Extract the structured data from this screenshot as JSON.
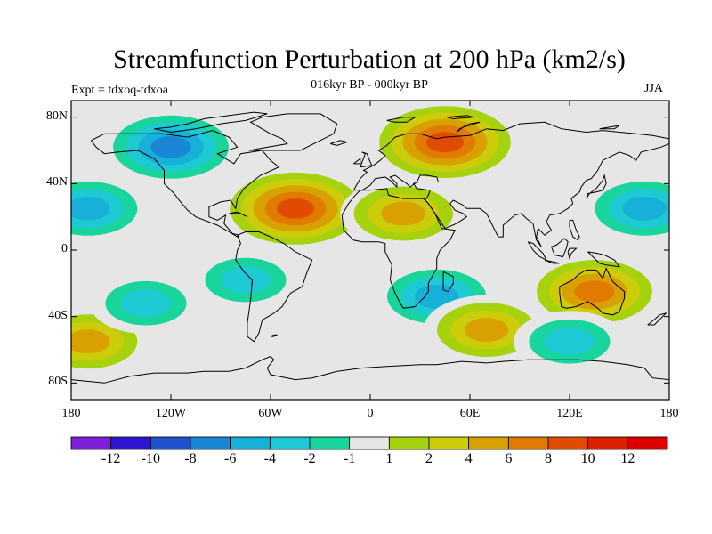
{
  "chart_data": {
    "type": "heatmap",
    "title": "Streamfunction Perturbation at 200 hPa (km2/s)",
    "subtitle": "016kyr BP - 000kyr BP",
    "left_string": "Expt = tdxoq-tdxoa",
    "right_string": "JJA",
    "xlim": [
      -180,
      180
    ],
    "ylim": [
      -90,
      90
    ],
    "x_ticks": [
      {
        "value": -180,
        "label": "180"
      },
      {
        "value": -120,
        "label": "120W"
      },
      {
        "value": -60,
        "label": "60W"
      },
      {
        "value": 0,
        "label": "0"
      },
      {
        "value": 60,
        "label": "60E"
      },
      {
        "value": 120,
        "label": "120E"
      },
      {
        "value": 180,
        "label": "180"
      }
    ],
    "y_ticks": [
      {
        "value": 80,
        "label": "80N"
      },
      {
        "value": 40,
        "label": "40N"
      },
      {
        "value": 0,
        "label": "0"
      },
      {
        "value": -40,
        "label": "40S"
      },
      {
        "value": -80,
        "label": "80S"
      }
    ],
    "colorbar": {
      "labels": [
        "-12",
        "-10",
        "-8",
        "-6",
        "-4",
        "-2",
        "-1",
        "1",
        "2",
        "4",
        "6",
        "8",
        "10",
        "12"
      ],
      "colors": [
        "#7b1fd9",
        "#2f14d1",
        "#1f52cc",
        "#1a86d6",
        "#16b0d9",
        "#1dcad4",
        "#19d49c",
        "#e6e6e6",
        "#a5d10d",
        "#cccc0a",
        "#d8a000",
        "#e07a00",
        "#e04b00",
        "#dc2000",
        "#dc0000"
      ]
    },
    "anomaly_centers": [
      {
        "lon": -120,
        "lat": 62,
        "value": -6
      },
      {
        "lon": 45,
        "lat": 65,
        "value": 8
      },
      {
        "lon": -45,
        "lat": 25,
        "value": 8
      },
      {
        "lon": 20,
        "lat": 22,
        "value": 4
      },
      {
        "lon": -170,
        "lat": 25,
        "value": -4
      },
      {
        "lon": 165,
        "lat": 25,
        "value": -4
      },
      {
        "lon": 40,
        "lat": -28,
        "value": -4
      },
      {
        "lon": -75,
        "lat": -18,
        "value": -2
      },
      {
        "lon": 135,
        "lat": -25,
        "value": 6
      },
      {
        "lon": 70,
        "lat": -48,
        "value": 4
      },
      {
        "lon": -170,
        "lat": -55,
        "value": 4
      },
      {
        "lon": 120,
        "lat": -55,
        "value": -2
      },
      {
        "lon": -135,
        "lat": -32,
        "value": -2
      }
    ]
  }
}
